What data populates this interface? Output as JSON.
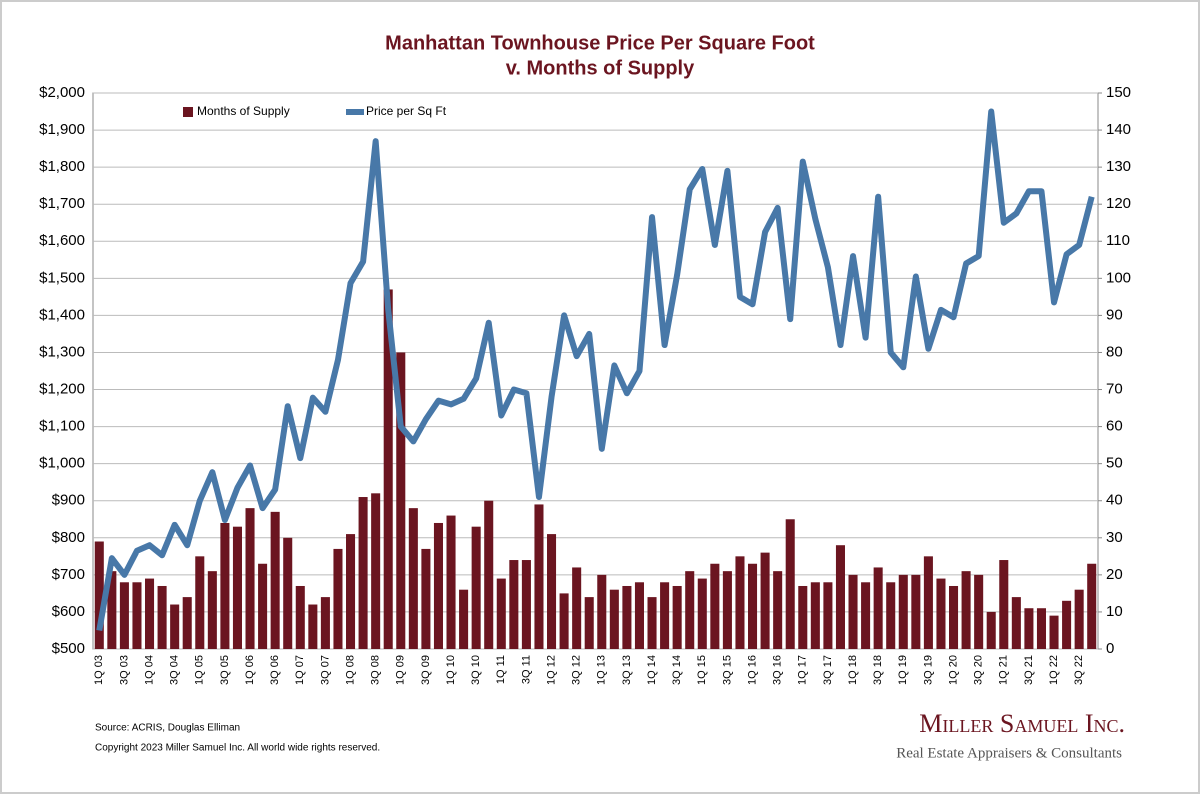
{
  "chart_data": {
    "type": "bar_line",
    "title": "Manhattan Townhouse Price Per Square Foot",
    "subtitle": "v. Months of Supply",
    "categories": [
      "1Q 03",
      null,
      "3Q 03",
      null,
      "1Q 04",
      null,
      "3Q 04",
      null,
      "1Q 05",
      null,
      "3Q 05",
      null,
      "1Q 06",
      null,
      "3Q 06",
      null,
      "1Q 07",
      null,
      "3Q 07",
      null,
      "1Q 08",
      null,
      "3Q 08",
      null,
      "1Q 09",
      null,
      "3Q 09",
      null,
      "1Q 10",
      null,
      "3Q 10",
      null,
      "1Q 11",
      null,
      "3Q 11",
      null,
      "1Q 12",
      null,
      "3Q 12",
      null,
      "1Q 13",
      null,
      "3Q 13",
      null,
      "1Q 14",
      null,
      "3Q 14",
      null,
      "1Q 15",
      null,
      "3Q 15",
      null,
      "1Q 16",
      null,
      "3Q 16",
      null,
      "1Q 17",
      null,
      "3Q 17",
      null,
      "1Q 18",
      null,
      "3Q 18",
      null,
      "1Q 19",
      null,
      "3Q 19",
      null,
      "1Q 20",
      null,
      "3Q 20",
      null,
      "1Q 21",
      null,
      "3Q 21",
      null,
      "1Q 22",
      null,
      "3Q 22",
      null
    ],
    "series": [
      {
        "name": "Months of Supply",
        "type": "bar",
        "axis": "y2",
        "color": "#6b1520",
        "values": [
          29,
          21,
          18,
          18,
          19,
          17,
          12,
          14,
          25,
          21,
          34,
          33,
          38,
          23,
          37,
          30,
          17,
          12,
          14,
          27,
          31,
          41,
          42,
          97,
          80,
          38,
          27,
          34,
          36,
          16,
          33,
          40,
          19,
          24,
          24,
          39,
          31,
          15,
          22,
          14,
          20,
          16,
          17,
          18,
          14,
          18,
          17,
          21,
          19,
          23,
          21,
          25,
          23,
          26,
          21,
          35,
          17,
          18,
          18,
          28,
          20,
          18,
          22,
          18,
          20,
          20,
          25,
          19,
          17,
          21,
          20,
          10,
          24,
          14,
          11,
          11,
          9,
          13,
          16,
          23
        ]
      },
      {
        "name": "Price per Sq Ft",
        "type": "line",
        "color": "#4878a8",
        "values": [
          550,
          745,
          700,
          765,
          780,
          753,
          835,
          780,
          900,
          977,
          848,
          935,
          995,
          880,
          930,
          1155,
          1015,
          1178,
          1140,
          1280,
          1487,
          1545,
          1870,
          1415,
          1100,
          1060,
          1120,
          1170,
          1160,
          1175,
          1230,
          1380,
          1130,
          1200,
          1190,
          910,
          1180,
          1400,
          1290,
          1350,
          1040,
          1265,
          1190,
          1250,
          1665,
          1320,
          1510,
          1740,
          1795,
          1590,
          1790,
          1450,
          1430,
          1625,
          1690,
          1390,
          1815,
          1660,
          1530,
          1320,
          1560,
          1340,
          1720,
          1300,
          1260,
          1505,
          1310,
          1415,
          1395,
          1540,
          1560,
          1950,
          1650,
          1675,
          1735,
          1735,
          1435,
          1565,
          1590,
          1720
        ]
      }
    ],
    "ylim": [
      500,
      2000
    ],
    "yticks": [
      {
        "value": 500,
        "label": "$500"
      },
      {
        "value": 600,
        "label": "$600"
      },
      {
        "value": 700,
        "label": "$700"
      },
      {
        "value": 800,
        "label": "$800"
      },
      {
        "value": 900,
        "label": "$900"
      },
      {
        "value": 1000,
        "label": "$1,000"
      },
      {
        "value": 1100,
        "label": "$1,100"
      },
      {
        "value": 1200,
        "label": "$1,200"
      },
      {
        "value": 1300,
        "label": "$1,300"
      },
      {
        "value": 1400,
        "label": "$1,400"
      },
      {
        "value": 1500,
        "label": "$1,500"
      },
      {
        "value": 1600,
        "label": "$1,600"
      },
      {
        "value": 1700,
        "label": "$1,700"
      },
      {
        "value": 1800,
        "label": "$1,800"
      },
      {
        "value": 1900,
        "label": "$1,900"
      },
      {
        "value": 2000,
        "label": "$2,000"
      }
    ],
    "y2lim": [
      0,
      150
    ],
    "y2ticks": [
      0,
      10,
      20,
      30,
      40,
      50,
      60,
      70,
      80,
      90,
      100,
      110,
      120,
      130,
      140,
      150
    ],
    "grid": true,
    "legend": "top"
  },
  "footer": {
    "source": "Source: ACRIS, Douglas Elliman",
    "copyright": "Copyright 2023 Miller Samuel Inc.  All world wide rights reserved.",
    "logo": "Miller Samuel Inc.",
    "tagline": "Real Estate Appraisers & Consultants"
  }
}
